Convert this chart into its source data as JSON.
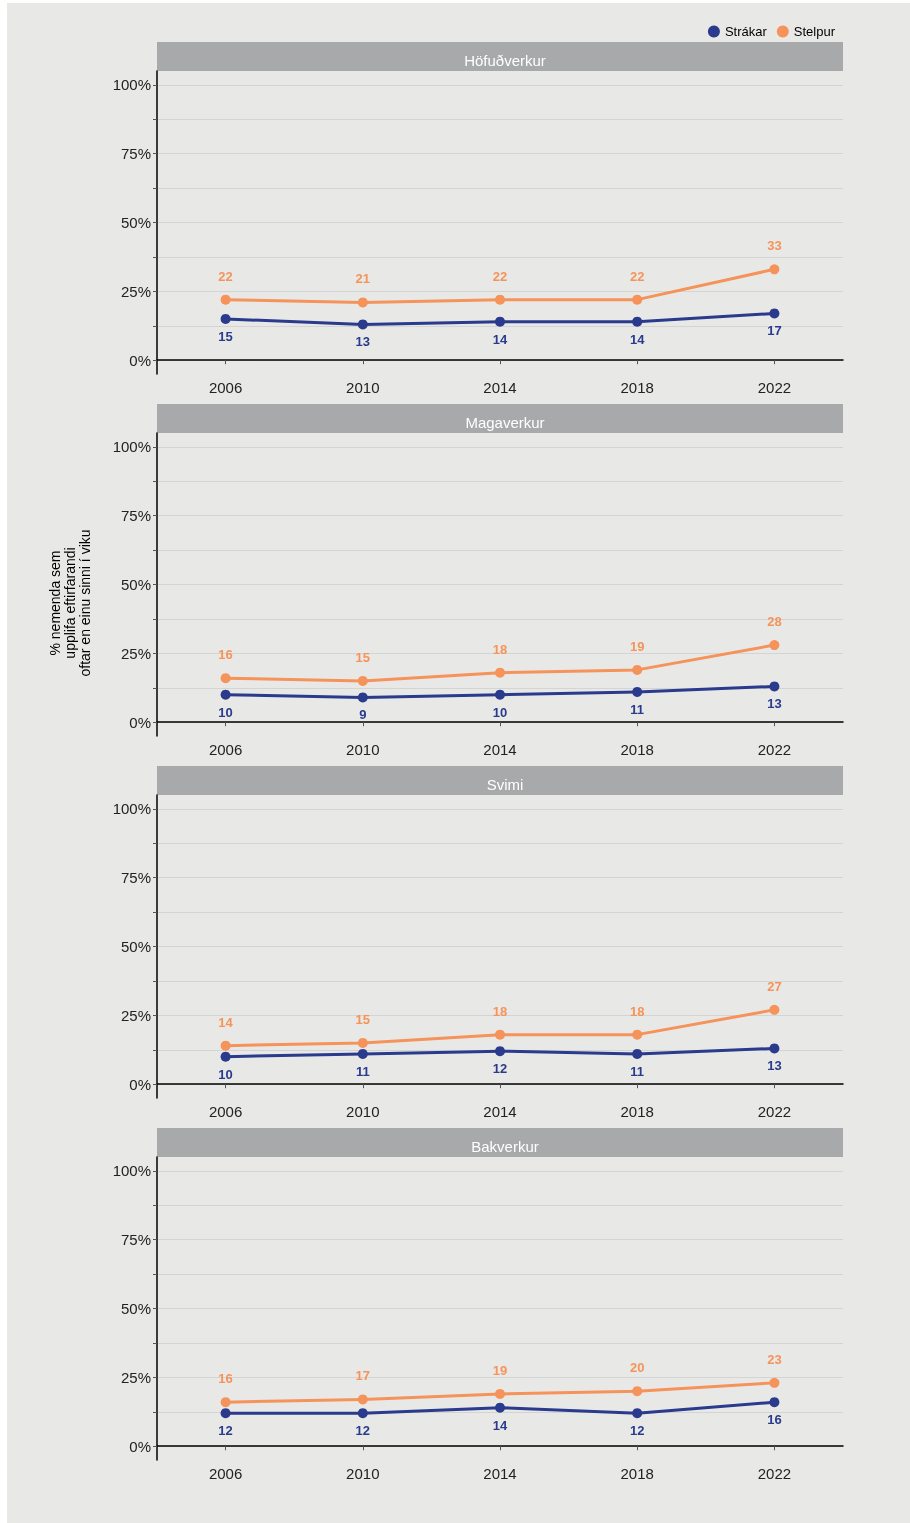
{
  "chart_data": [
    {
      "type": "line",
      "title": "Höfuðverkur",
      "categories": [
        "2006",
        "2010",
        "2014",
        "2018",
        "2022"
      ],
      "series": [
        {
          "name": "Strákar",
          "color": "#2a3a8c",
          "values": [
            15,
            13,
            14,
            14,
            17
          ]
        },
        {
          "name": "Stelpur",
          "color": "#f5935a",
          "values": [
            22,
            21,
            22,
            22,
            33
          ]
        }
      ],
      "ylim": [
        -5,
        105
      ],
      "yticks": [
        {
          "value": 0,
          "label": "0%"
        },
        {
          "value": 12.5,
          "label": null
        },
        {
          "value": 25,
          "label": "25%"
        },
        {
          "value": 37.5,
          "label": null
        },
        {
          "value": 50,
          "label": "50%"
        },
        {
          "value": 62.5,
          "label": null
        },
        {
          "value": 75,
          "label": "75%"
        },
        {
          "value": 87.5,
          "label": null
        },
        {
          "value": 100,
          "label": "100%"
        }
      ],
      "grid": "y",
      "legend": "top right",
      "marker": "circle",
      "data_labels": true
    },
    {
      "type": "line",
      "title": "Magaverkur",
      "ylabel": "% nemenda sem\nupplifa eftirfarandi\noftar en einu sinni í viku",
      "categories": [
        "2006",
        "2010",
        "2014",
        "2018",
        "2022"
      ],
      "series": [
        {
          "color": "#2a3a8c",
          "values": [
            10,
            9,
            10,
            11,
            13
          ]
        },
        {
          "color": "#f5935a",
          "values": [
            16,
            15,
            18,
            19,
            28
          ]
        }
      ],
      "ylim": [
        -5,
        105
      ],
      "yticks": [
        {
          "value": 0,
          "label": "0%"
        },
        {
          "value": 12.5,
          "label": null
        },
        {
          "value": 25,
          "label": "25%"
        },
        {
          "value": 37.5,
          "label": null
        },
        {
          "value": 50,
          "label": "50%"
        },
        {
          "value": 62.5,
          "label": null
        },
        {
          "value": 75,
          "label": "75%"
        },
        {
          "value": 87.5,
          "label": null
        },
        {
          "value": 100,
          "label": "100%"
        }
      ],
      "grid": "y",
      "marker": "circle",
      "data_labels": true
    },
    {
      "type": "line",
      "title": "Svimi",
      "categories": [
        "2006",
        "2010",
        "2014",
        "2018",
        "2022"
      ],
      "series": [
        {
          "color": "#2a3a8c",
          "values": [
            10,
            11,
            12,
            11,
            13
          ]
        },
        {
          "color": "#f5935a",
          "values": [
            14,
            15,
            18,
            18,
            27
          ]
        }
      ],
      "ylim": [
        -5,
        105
      ],
      "yticks": [
        {
          "value": 0,
          "label": "0%"
        },
        {
          "value": 12.5,
          "label": null
        },
        {
          "value": 25,
          "label": "25%"
        },
        {
          "value": 37.5,
          "label": null
        },
        {
          "value": 50,
          "label": "50%"
        },
        {
          "value": 62.5,
          "label": null
        },
        {
          "value": 75,
          "label": "75%"
        },
        {
          "value": 87.5,
          "label": null
        },
        {
          "value": 100,
          "label": "100%"
        }
      ],
      "grid": "y",
      "marker": "circle",
      "data_labels": true
    },
    {
      "type": "line",
      "title": "Bakverkur",
      "categories": [
        "2006",
        "2010",
        "2014",
        "2018",
        "2022"
      ],
      "series": [
        {
          "color": "#2a3a8c",
          "values": [
            12,
            12,
            14,
            12,
            16
          ]
        },
        {
          "color": "#f5935a",
          "values": [
            16,
            17,
            19,
            20,
            23
          ]
        }
      ],
      "ylim": [
        -5,
        105
      ],
      "yticks": [
        {
          "value": 0,
          "label": "0%"
        },
        {
          "value": 12.5,
          "label": null
        },
        {
          "value": 25,
          "label": "25%"
        },
        {
          "value": 37.5,
          "label": null
        },
        {
          "value": 50,
          "label": "50%"
        },
        {
          "value": 62.5,
          "label": null
        },
        {
          "value": 75,
          "label": "75%"
        },
        {
          "value": 87.5,
          "label": null
        },
        {
          "value": 100,
          "label": "100%"
        }
      ],
      "grid": "y",
      "marker": "circle",
      "data_labels": true
    }
  ]
}
